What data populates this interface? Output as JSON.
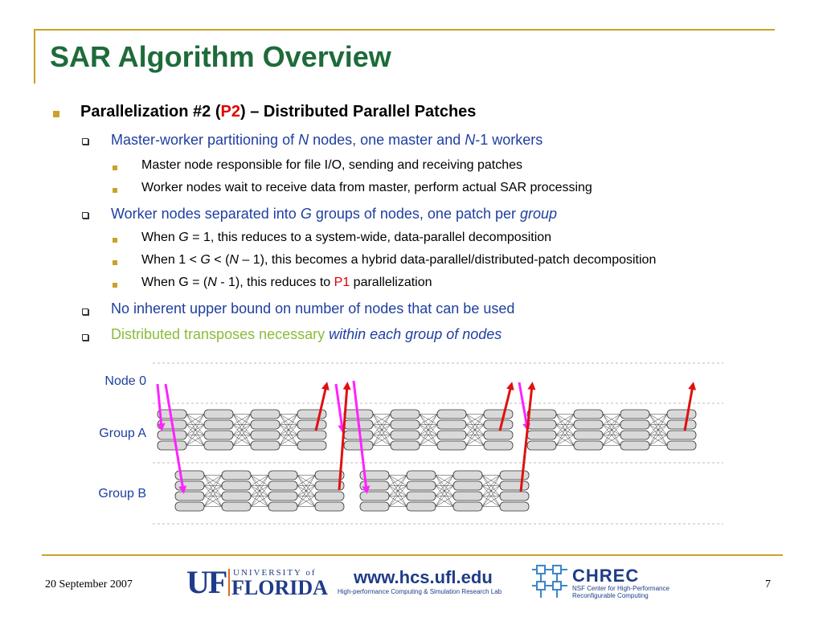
{
  "slide": {
    "title": "SAR Algorithm Overview",
    "bullets": {
      "b1_pre": "Parallelization #2 (",
      "b1_red": "P2",
      "b1_post": ") – Distributed Parallel Patches",
      "b1a_pre": "Master-worker partitioning of ",
      "b1a_n": "N",
      "b1a_mid": " nodes, one master and ",
      "b1a_n2": "N",
      "b1a_post": "-1 workers",
      "b1a_i": "Master node responsible for file I/O, sending and receiving patches",
      "b1a_ii": "Worker nodes wait to receive data from master, perform actual SAR processing",
      "b1b_pre": "Worker nodes separated into ",
      "b1b_g": "G",
      "b1b_mid": " groups of nodes, one patch per ",
      "b1b_group": "group",
      "b1b_i_pre": "When ",
      "b1b_i_g": "G",
      "b1b_i_post": " = 1, this reduces to a system-wide, data-parallel decomposition",
      "b1b_ii_pre": "When 1 < ",
      "b1b_ii_g": "G",
      "b1b_ii_mid": " < (",
      "b1b_ii_n": "N",
      "b1b_ii_post": " – 1), this becomes a hybrid data-parallel/distributed-patch decomposition",
      "b1b_iii_pre": "When G = (",
      "b1b_iii_n": "N",
      "b1b_iii_mid": " - 1), this reduces to ",
      "b1b_iii_red": "P1",
      "b1b_iii_post": " parallelization",
      "b1c": "No inherent upper bound on number of nodes that can be used",
      "b1d_green": "Distributed transposes necessary ",
      "b1d_italic": "within each group of nodes"
    }
  },
  "diagram": {
    "labels": {
      "node0": "Node 0",
      "groupA": "Group A",
      "groupB": "Group B"
    },
    "colors": {
      "scatter": "#ff22ff",
      "gather": "#e01010",
      "node": "#d9d9d9",
      "node_border": "#333333",
      "butterfly": "#333333",
      "dash": "#bbbbbb"
    }
  },
  "footer": {
    "date": "20 September 2007",
    "page": "7",
    "uf": {
      "mark": "UF",
      "university": "UNIVERSITY of",
      "florida": "FLORIDA"
    },
    "hcs": {
      "url": "www.hcs.ufl.edu",
      "subtitle": "High-performance Computing & Simulation Research Lab"
    },
    "chrec": {
      "name": "CHREC",
      "line1": "NSF Center for High-Performance",
      "line2": "Reconfigurable Computing"
    }
  }
}
